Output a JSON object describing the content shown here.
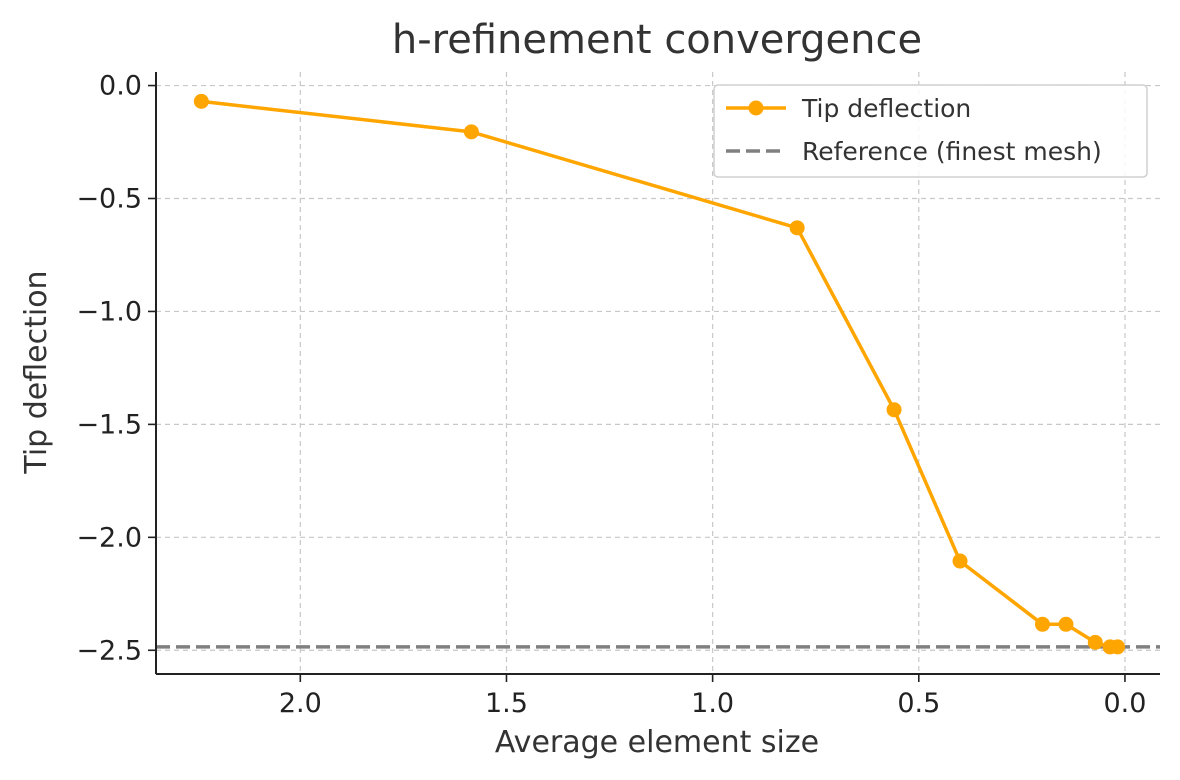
{
  "chart_data": {
    "type": "line",
    "title": "h-refinement convergence",
    "xlabel": "Average element size",
    "ylabel": "Tip deflection",
    "x_inverted": true,
    "xlim": [
      2.35,
      -0.085
    ],
    "ylim": [
      -2.605,
      0.06
    ],
    "x_ticks": [
      {
        "value": 2.0,
        "label": "2.0"
      },
      {
        "value": 1.5,
        "label": "1.5"
      },
      {
        "value": 1.0,
        "label": "1.0"
      },
      {
        "value": 0.5,
        "label": "0.5"
      },
      {
        "value": 0.0,
        "label": "0.0"
      }
    ],
    "y_ticks": [
      {
        "value": 0.0,
        "label": "0.0"
      },
      {
        "value": -0.5,
        "label": "−0.5"
      },
      {
        "value": -1.0,
        "label": "−1.0"
      },
      {
        "value": -1.5,
        "label": "−1.5"
      },
      {
        "value": -2.0,
        "label": "−2.0"
      },
      {
        "value": -2.5,
        "label": "−2.5"
      }
    ],
    "grid": true,
    "legend_position": "top-right",
    "series": [
      {
        "name": "Tip deflection",
        "color": "#FFA500",
        "marker": "circle",
        "x": [
          2.24,
          1.585,
          0.795,
          0.56,
          0.4,
          0.2,
          0.143,
          0.072,
          0.036,
          0.018
        ],
        "y": [
          -0.07,
          -0.205,
          -0.63,
          -1.435,
          -2.105,
          -2.385,
          -2.385,
          -2.465,
          -2.485,
          -2.485
        ]
      }
    ],
    "reference_line": {
      "name": "Reference (finest mesh)",
      "y": -2.485,
      "color": "#808080",
      "style": "dashed"
    }
  }
}
